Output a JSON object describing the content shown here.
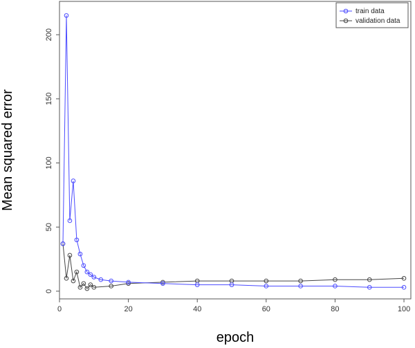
{
  "chart_data": {
    "type": "line",
    "xlabel": "epoch",
    "ylabel": "Mean squared error",
    "xlim": [
      0,
      102
    ],
    "ylim": [
      -6,
      226
    ],
    "xticks": [
      0,
      20,
      40,
      60,
      80,
      100
    ],
    "yticks": [
      0,
      50,
      100,
      150,
      200
    ],
    "grid": false,
    "legend_position": "top-right",
    "series": [
      {
        "name": "train data",
        "color": "#4a4aff",
        "marker": "circle-open",
        "values": [
          {
            "epoch": 1,
            "mse": 37
          },
          {
            "epoch": 2,
            "mse": 215
          },
          {
            "epoch": 3,
            "mse": 55
          },
          {
            "epoch": 4,
            "mse": 86
          },
          {
            "epoch": 5,
            "mse": 40
          },
          {
            "epoch": 6,
            "mse": 29
          },
          {
            "epoch": 7,
            "mse": 20
          },
          {
            "epoch": 8,
            "mse": 15
          },
          {
            "epoch": 9,
            "mse": 13
          },
          {
            "epoch": 10,
            "mse": 11
          },
          {
            "epoch": 12,
            "mse": 9
          },
          {
            "epoch": 15,
            "mse": 8
          },
          {
            "epoch": 20,
            "mse": 7
          },
          {
            "epoch": 30,
            "mse": 6
          },
          {
            "epoch": 40,
            "mse": 5
          },
          {
            "epoch": 50,
            "mse": 5
          },
          {
            "epoch": 60,
            "mse": 4
          },
          {
            "epoch": 70,
            "mse": 4
          },
          {
            "epoch": 80,
            "mse": 4
          },
          {
            "epoch": 90,
            "mse": 3
          },
          {
            "epoch": 100,
            "mse": 3
          }
        ]
      },
      {
        "name": "validation data",
        "color": "#444444",
        "marker": "circle-open",
        "values": [
          {
            "epoch": 1,
            "mse": 37
          },
          {
            "epoch": 2,
            "mse": 10
          },
          {
            "epoch": 3,
            "mse": 28
          },
          {
            "epoch": 4,
            "mse": 8
          },
          {
            "epoch": 5,
            "mse": 15
          },
          {
            "epoch": 6,
            "mse": 3
          },
          {
            "epoch": 7,
            "mse": 6
          },
          {
            "epoch": 8,
            "mse": 2
          },
          {
            "epoch": 9,
            "mse": 5
          },
          {
            "epoch": 10,
            "mse": 3
          },
          {
            "epoch": 15,
            "mse": 4
          },
          {
            "epoch": 20,
            "mse": 6
          },
          {
            "epoch": 30,
            "mse": 7
          },
          {
            "epoch": 40,
            "mse": 8
          },
          {
            "epoch": 50,
            "mse": 8
          },
          {
            "epoch": 60,
            "mse": 8
          },
          {
            "epoch": 70,
            "mse": 8
          },
          {
            "epoch": 80,
            "mse": 9
          },
          {
            "epoch": 90,
            "mse": 9
          },
          {
            "epoch": 100,
            "mse": 10
          }
        ]
      }
    ]
  }
}
